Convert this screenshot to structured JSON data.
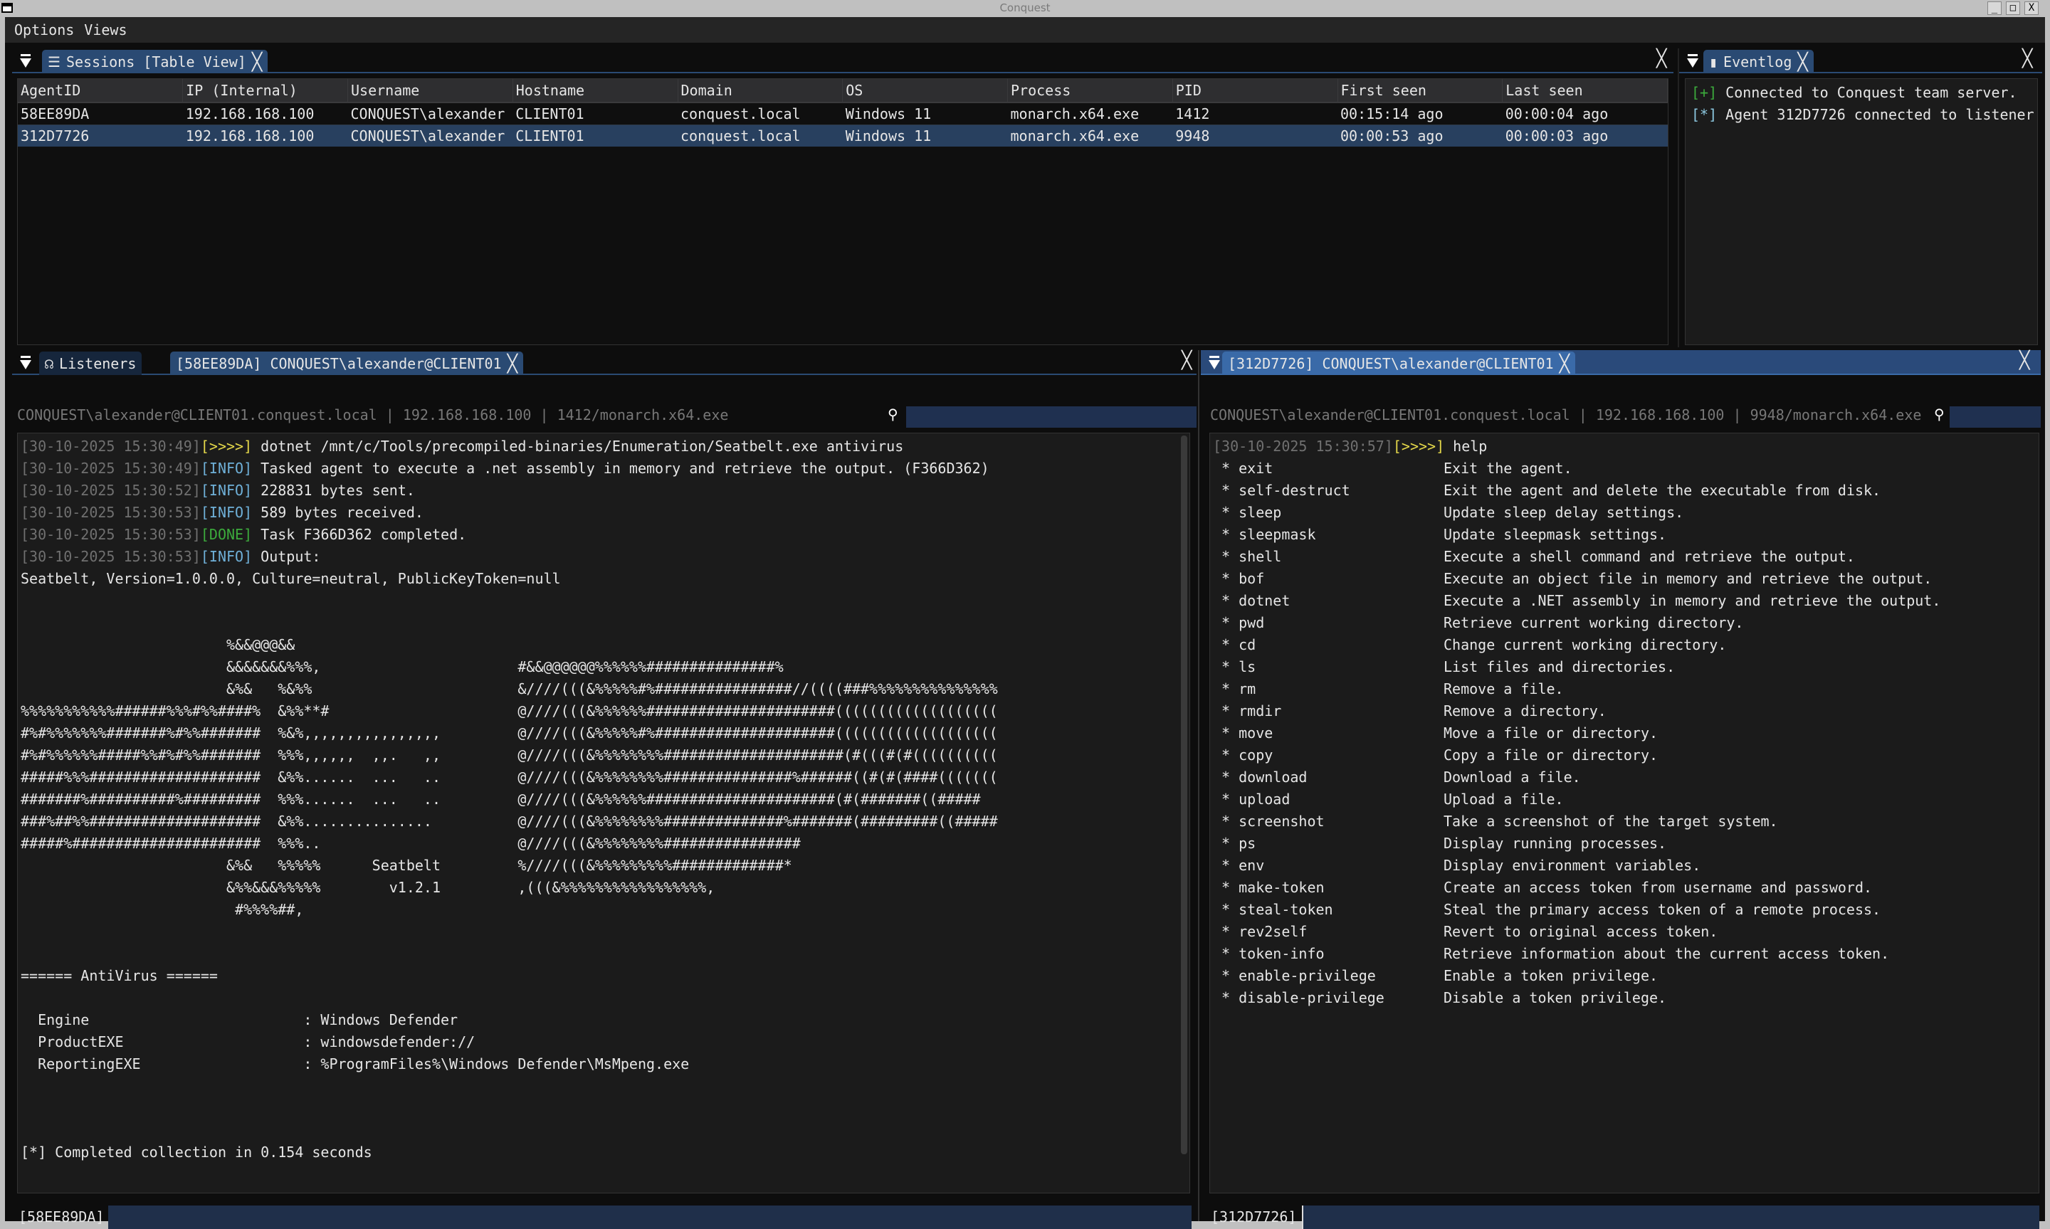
{
  "window": {
    "title": "Conquest",
    "buttons": [
      "_",
      "□",
      "X"
    ]
  },
  "menu": [
    "Options",
    "Views"
  ],
  "sessions": {
    "tab_label": "Sessions [Table View]",
    "columns": [
      "AgentID",
      "IP (Internal)",
      "Username",
      "Hostname",
      "Domain",
      "OS",
      "Process",
      "PID",
      "First seen",
      "Last seen"
    ],
    "rows": [
      [
        "58EE89DA",
        "192.168.168.100",
        "CONQUEST\\alexander",
        "CLIENT01",
        "conquest.local",
        "Windows 11",
        "monarch.x64.exe",
        "1412",
        "00:15:14 ago",
        "00:00:04 ago"
      ],
      [
        "312D7726",
        "192.168.168.100",
        "CONQUEST\\alexander",
        "CLIENT01",
        "conquest.local",
        "Windows 11",
        "monarch.x64.exe",
        "9948",
        "00:00:53 ago",
        "00:00:03 ago"
      ]
    ],
    "selected_row": 1
  },
  "eventlog": {
    "tab_label": "Eventlog",
    "entries": [
      {
        "tag": "[+]",
        "type": "plus",
        "text": "Connected to Conquest team server."
      },
      {
        "tag": "[*]",
        "type": "star",
        "text": "Agent 312D7726 connected to listener"
      }
    ]
  },
  "left_console": {
    "tabs": [
      {
        "label": "Listeners"
      },
      {
        "label": "[58EE89DA] CONQUEST\\alexander@CLIENT01"
      }
    ],
    "info": "CONQUEST\\alexander@CLIENT01.conquest.local | 192.168.168.100 | 1412/monarch.x64.exe",
    "search_value": "",
    "log": [
      {
        "ts": "[30-10-2025 15:30:49]",
        "tag": "[>>>>]",
        "type": "cmd",
        "text": " dotnet /mnt/c/Tools/precompiled-binaries/Enumeration/Seatbelt.exe antivirus"
      },
      {
        "ts": "[30-10-2025 15:30:49]",
        "tag": "[INFO]",
        "type": "info",
        "text": " Tasked agent to execute a .net assembly in memory and retrieve the output. (F366D362)"
      },
      {
        "ts": "[30-10-2025 15:30:52]",
        "tag": "[INFO]",
        "type": "info",
        "text": " 228831 bytes sent."
      },
      {
        "ts": "[30-10-2025 15:30:53]",
        "tag": "[INFO]",
        "type": "info",
        "text": " 589 bytes received."
      },
      {
        "ts": "[30-10-2025 15:30:53]",
        "tag": "[DONE]",
        "type": "done",
        "text": " Task F366D362 completed."
      },
      {
        "ts": "[30-10-2025 15:30:53]",
        "tag": "[INFO]",
        "type": "info",
        "text": " Output:"
      }
    ],
    "output": [
      "Seatbelt, Version=1.0.0.0, Culture=neutral, PublicKeyToken=null",
      "",
      "",
      "                        %&&@@@&&",
      "                        &&&&&&&%%%,                       #&&@@@@@@%%%%%%###############%",
      "                        &%&   %&%%                        &////(((&%%%%%#%################//((((###%%%%%%%%%%%%%%%",
      "%%%%%%%%%%%######%%%#%%####%  &%%**#                      @////(((&%%%%%%######################(((((((((((((((((((",
      "#%#%%%%%%%#######%#%%#######  %&%,,,,,,,,,,,,,,,,         @////(((&%%%%%#%#####################(((((((((((((((((((",
      "#%#%%%%%%#####%%#%#%%#######  %%%,,,,,,  ,,.   ,,         @////(((&%%%%%%%%#####################(#(((#(#((((((((((",
      "#####%%%####################  &%%......  ...   ..         @////(((&%%%%%%%%###############%######((#(#(####(((((((",
      "#######%##########%#########  %%%......  ...   ..         @////(((&%%%%%%######################(#(#######((#####",
      "###%##%%####################  &%%...............          @////(((&%%%%%%%%##############%#######(#########((#####",
      "#####%######################  %%%..                       @////(((&%%%%%%%%################",
      "                        &%&   %%%%%      Seatbelt         %////(((&%%%%%%%%%#############*",
      "                        &%%&&&%%%%%        v1.2.1         ,(((&%%%%%%%%%%%%%%%%%,",
      "                         #%%%%##,",
      "",
      "",
      "====== AntiVirus ======",
      "",
      "  Engine                         : Windows Defender",
      "  ProductEXE                     : windowsdefender://",
      "  ReportingEXE                   : %ProgramFiles%\\Windows Defender\\MsMpeng.exe",
      "",
      "",
      "",
      "[*] Completed collection in 0.154 seconds"
    ],
    "prompt": "[58EE89DA]",
    "input_value": ""
  },
  "right_console": {
    "tab_label": "[312D7726] CONQUEST\\alexander@CLIENT01",
    "info": "CONQUEST\\alexander@CLIENT01.conquest.local | 192.168.168.100 | 9948/monarch.x64.exe",
    "search_value": "",
    "log": {
      "ts": "[30-10-2025 15:30:57]",
      "tag": "[>>>>]",
      "text": " help"
    },
    "help": [
      [
        "exit",
        "Exit the agent."
      ],
      [
        "self-destruct",
        "Exit the agent and delete the executable from disk."
      ],
      [
        "sleep",
        "Update sleep delay settings."
      ],
      [
        "sleepmask",
        "Update sleepmask settings."
      ],
      [
        "shell",
        "Execute a shell command and retrieve the output."
      ],
      [
        "bof",
        "Execute an object file in memory and retrieve the output."
      ],
      [
        "dotnet",
        "Execute a .NET assembly in memory and retrieve the output."
      ],
      [
        "pwd",
        "Retrieve current working directory."
      ],
      [
        "cd",
        "Change current working directory."
      ],
      [
        "ls",
        "List files and directories."
      ],
      [
        "rm",
        "Remove a file."
      ],
      [
        "rmdir",
        "Remove a directory."
      ],
      [
        "move",
        "Move a file or directory."
      ],
      [
        "copy",
        "Copy a file or directory."
      ],
      [
        "download",
        "Download a file."
      ],
      [
        "upload",
        "Upload a file."
      ],
      [
        "screenshot",
        "Take a screenshot of the target system."
      ],
      [
        "ps",
        "Display running processes."
      ],
      [
        "env",
        "Display environment variables."
      ],
      [
        "make-token",
        "Create an access token from username and password."
      ],
      [
        "steal-token",
        "Steal the primary access token of a remote process."
      ],
      [
        "rev2self",
        "Revert to original access token."
      ],
      [
        "token-info",
        "Retrieve information about the current access token."
      ],
      [
        "enable-privilege",
        "Enable a token privilege."
      ],
      [
        "disable-privilege",
        "Disable a token privilege."
      ]
    ],
    "prompt": "[312D7726]",
    "input_value": ""
  },
  "colors": {
    "accent": "#2a4a73",
    "selected_row": "#28405f",
    "focused_header": "#2a4a7a",
    "cmd_tag": "#e5d84a",
    "info_tag": "#6fb0d8",
    "done_tag": "#3cab3c"
  }
}
